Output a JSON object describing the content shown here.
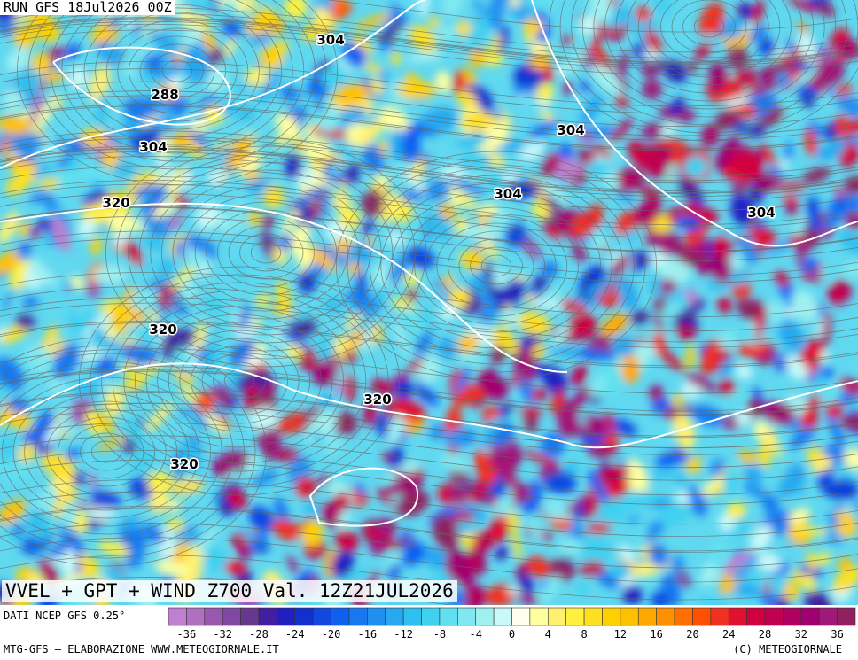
{
  "header": {
    "run": "RUN GFS 18Jul2026 00Z"
  },
  "title": "VVEL + GPT + WIND Z700 Val. 12Z21JUL2026",
  "contour_labels": [
    304,
    288,
    304,
    320,
    304,
    304,
    304,
    320,
    320,
    320
  ],
  "colorbar": {
    "colors": [
      "#c080d0",
      "#b070c0",
      "#9858b0",
      "#8048a0",
      "#683890",
      "#4020a0",
      "#2020c0",
      "#1030d0",
      "#1048e0",
      "#1060f0",
      "#1878f0",
      "#2090f0",
      "#28a8f0",
      "#30c0f0",
      "#40d0f0",
      "#60e0f0",
      "#80e8f0",
      "#a0f0f0",
      "#c8f8f8",
      "#fffff0",
      "#ffffa0",
      "#fff070",
      "#fff040",
      "#ffe020",
      "#ffd000",
      "#ffc000",
      "#ffa800",
      "#ff9000",
      "#ff7000",
      "#ff5000",
      "#f03020",
      "#e01030",
      "#d00040",
      "#c00050",
      "#b00060",
      "#a00070",
      "#a01878",
      "#902060"
    ],
    "ticks": [
      -36,
      -32,
      -28,
      -24,
      -20,
      -16,
      -12,
      -8,
      -4,
      0,
      4,
      8,
      12,
      16,
      20,
      24,
      28,
      32,
      36
    ]
  },
  "footer": {
    "source": "DATI NCEP GFS 0.25°",
    "credit": "MTG-GFS — ELABORAZIONE WWW.METEOGIORNALE.IT",
    "copyright": "(C) METEOGIORNALE"
  }
}
